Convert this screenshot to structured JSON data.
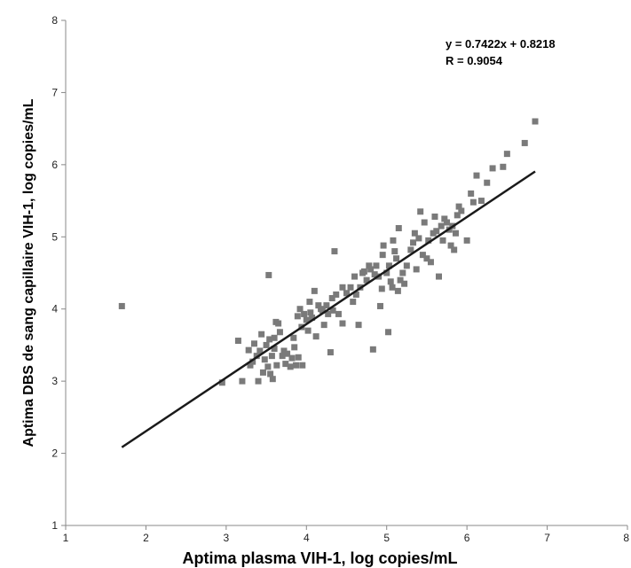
{
  "chart_data": {
    "type": "scatter",
    "title": "",
    "xlabel": "Aptima plasma VIH-1, log copies/mL",
    "ylabel": "Aptima DBS de sang capillaire VIH-1, log copies/mL",
    "xlim": [
      1,
      8
    ],
    "ylim": [
      1,
      8
    ],
    "xticks": [
      "1",
      "2",
      "3",
      "4",
      "5",
      "6",
      "7",
      "8"
    ],
    "yticks": [
      "1",
      "2",
      "3",
      "4",
      "5",
      "6",
      "7",
      "8"
    ],
    "grid": false,
    "legend": "none",
    "annotations": {
      "equation": "y = 0.7422x + 0.8218",
      "r_value": "R = 0.9054"
    },
    "colors": {
      "points": "#7a7a7a",
      "trendline": "#1a1a1a",
      "axis": "#888888"
    },
    "trendline": {
      "slope": 0.7422,
      "intercept": 0.8218,
      "x_range": [
        1.7,
        6.85
      ]
    },
    "points": [
      [
        1.7,
        4.04
      ],
      [
        2.95,
        2.98
      ],
      [
        3.15,
        3.56
      ],
      [
        3.2,
        3.0
      ],
      [
        3.28,
        3.43
      ],
      [
        3.3,
        3.22
      ],
      [
        3.33,
        3.27
      ],
      [
        3.35,
        3.52
      ],
      [
        3.38,
        3.35
      ],
      [
        3.4,
        3.0
      ],
      [
        3.42,
        3.42
      ],
      [
        3.44,
        3.65
      ],
      [
        3.46,
        3.12
      ],
      [
        3.48,
        3.3
      ],
      [
        3.5,
        3.5
      ],
      [
        3.52,
        3.2
      ],
      [
        3.53,
        4.47
      ],
      [
        3.54,
        3.58
      ],
      [
        3.55,
        3.1
      ],
      [
        3.57,
        3.35
      ],
      [
        3.58,
        3.03
      ],
      [
        3.6,
        3.45
      ],
      [
        3.6,
        3.6
      ],
      [
        3.62,
        3.82
      ],
      [
        3.63,
        3.22
      ],
      [
        3.65,
        3.8
      ],
      [
        3.67,
        3.68
      ],
      [
        3.7,
        3.35
      ],
      [
        3.72,
        3.42
      ],
      [
        3.74,
        3.24
      ],
      [
        3.76,
        3.38
      ],
      [
        3.8,
        3.2
      ],
      [
        3.82,
        3.32
      ],
      [
        3.84,
        3.6
      ],
      [
        3.85,
        3.47
      ],
      [
        3.87,
        3.22
      ],
      [
        3.89,
        3.9
      ],
      [
        3.9,
        3.33
      ],
      [
        3.92,
        4.0
      ],
      [
        3.94,
        3.75
      ],
      [
        3.95,
        3.22
      ],
      [
        3.97,
        3.93
      ],
      [
        4.0,
        3.85
      ],
      [
        4.02,
        3.7
      ],
      [
        4.04,
        4.1
      ],
      [
        4.07,
        3.88
      ],
      [
        4.1,
        4.25
      ],
      [
        4.12,
        3.62
      ],
      [
        4.15,
        4.05
      ],
      [
        4.18,
        4.0
      ],
      [
        4.2,
        3.98
      ],
      [
        4.22,
        3.78
      ],
      [
        4.25,
        4.05
      ],
      [
        4.27,
        3.93
      ],
      [
        4.3,
        3.4
      ],
      [
        4.32,
        4.15
      ],
      [
        4.33,
        3.98
      ],
      [
        4.35,
        4.8
      ],
      [
        4.37,
        4.2
      ],
      [
        4.4,
        3.93
      ],
      [
        4.45,
        3.8
      ],
      [
        4.5,
        4.22
      ],
      [
        4.55,
        4.3
      ],
      [
        4.58,
        4.1
      ],
      [
        4.6,
        4.45
      ],
      [
        4.62,
        4.2
      ],
      [
        4.65,
        3.78
      ],
      [
        4.67,
        4.3
      ],
      [
        4.7,
        4.5
      ],
      [
        4.72,
        4.52
      ],
      [
        4.75,
        4.4
      ],
      [
        4.78,
        4.6
      ],
      [
        4.8,
        4.55
      ],
      [
        4.83,
        3.44
      ],
      [
        4.85,
        4.48
      ],
      [
        4.87,
        4.6
      ],
      [
        4.9,
        4.45
      ],
      [
        4.92,
        4.04
      ],
      [
        4.94,
        4.28
      ],
      [
        4.96,
        4.88
      ],
      [
        5.0,
        4.5
      ],
      [
        5.02,
        3.68
      ],
      [
        5.03,
        4.6
      ],
      [
        5.05,
        4.38
      ],
      [
        5.07,
        4.3
      ],
      [
        5.08,
        4.95
      ],
      [
        5.1,
        4.8
      ],
      [
        5.12,
        4.7
      ],
      [
        5.14,
        4.25
      ],
      [
        5.17,
        4.4
      ],
      [
        5.2,
        4.5
      ],
      [
        5.22,
        4.35
      ],
      [
        5.25,
        4.6
      ],
      [
        5.3,
        4.82
      ],
      [
        5.33,
        4.92
      ],
      [
        5.35,
        5.05
      ],
      [
        5.37,
        4.55
      ],
      [
        5.4,
        4.98
      ],
      [
        5.42,
        5.35
      ],
      [
        5.45,
        4.75
      ],
      [
        5.47,
        5.2
      ],
      [
        5.5,
        4.7
      ],
      [
        5.52,
        4.95
      ],
      [
        5.55,
        4.65
      ],
      [
        5.58,
        5.05
      ],
      [
        5.6,
        5.28
      ],
      [
        5.62,
        5.08
      ],
      [
        5.65,
        4.45
      ],
      [
        5.68,
        5.15
      ],
      [
        5.7,
        4.95
      ],
      [
        5.72,
        5.25
      ],
      [
        5.75,
        5.2
      ],
      [
        5.78,
        5.1
      ],
      [
        5.8,
        4.88
      ],
      [
        5.82,
        5.15
      ],
      [
        5.84,
        4.82
      ],
      [
        5.86,
        5.05
      ],
      [
        5.88,
        5.3
      ],
      [
        5.9,
        5.42
      ],
      [
        5.93,
        5.36
      ],
      [
        6.0,
        4.95
      ],
      [
        6.05,
        5.6
      ],
      [
        6.08,
        5.48
      ],
      [
        6.12,
        5.85
      ],
      [
        6.18,
        5.5
      ],
      [
        6.25,
        5.75
      ],
      [
        6.32,
        5.95
      ],
      [
        6.45,
        5.97
      ],
      [
        6.5,
        6.15
      ],
      [
        6.72,
        6.3
      ],
      [
        6.85,
        6.6
      ],
      [
        5.15,
        5.12
      ],
      [
        4.95,
        4.75
      ],
      [
        4.45,
        4.3
      ],
      [
        4.05,
        3.95
      ]
    ]
  }
}
